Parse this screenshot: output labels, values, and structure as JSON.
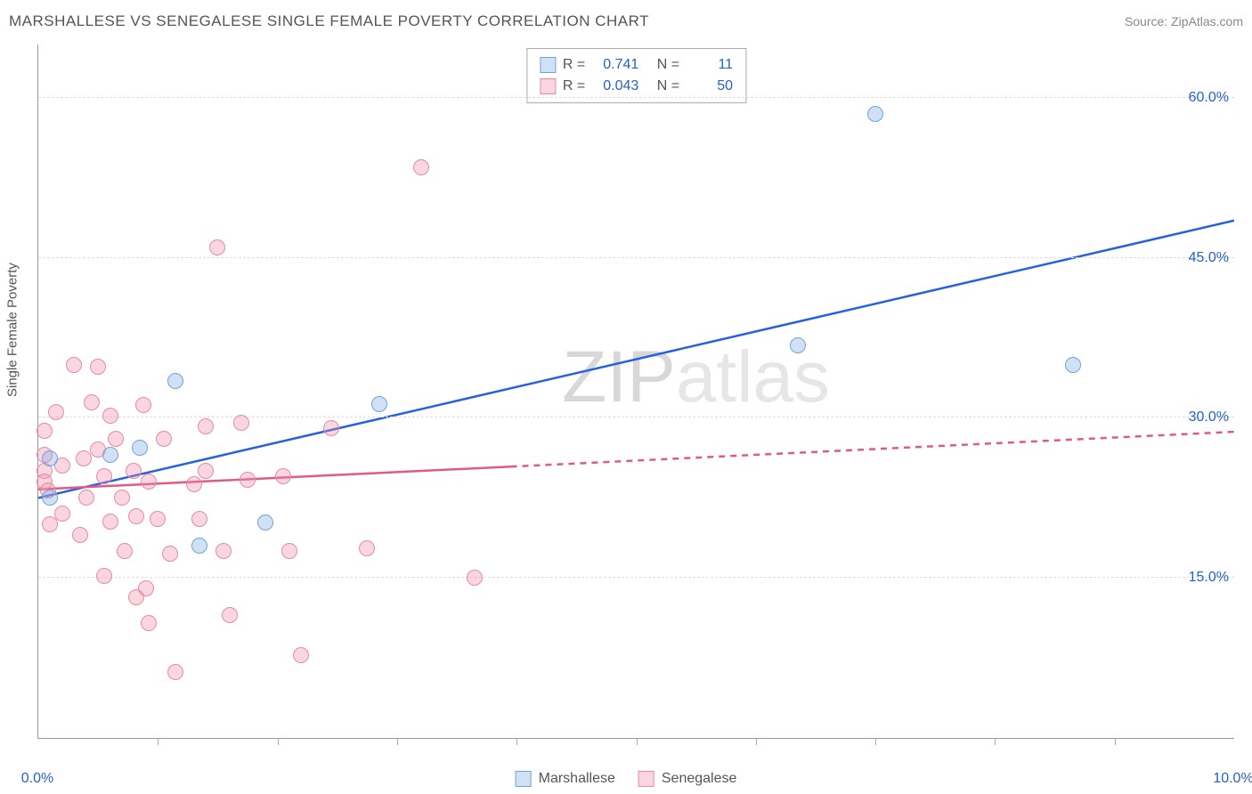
{
  "title": "MARSHALLESE VS SENEGALESE SINGLE FEMALE POVERTY CORRELATION CHART",
  "source": "Source: ZipAtlas.com",
  "watermark": {
    "pre": "ZIP",
    "post": "atlas"
  },
  "chart": {
    "type": "scatter",
    "y_axis_label": "Single Female Poverty",
    "xlim": [
      0,
      10
    ],
    "ylim": [
      0,
      65
    ],
    "x_ticks_major": [
      0,
      10
    ],
    "x_ticks_minor": [
      1,
      2,
      3,
      4,
      5,
      6,
      7,
      8,
      9
    ],
    "y_gridlines": [
      15,
      30,
      45,
      60
    ],
    "x_tick_labels": {
      "0": "0.0%",
      "10": "10.0%"
    },
    "y_tick_labels": {
      "15": "15.0%",
      "30": "30.0%",
      "45": "45.0%",
      "60": "60.0%"
    },
    "background_color": "#ffffff",
    "grid_color": "#dddddd",
    "axis_color": "#999999",
    "tick_label_color": "#2561c9",
    "label_fontsize": 15,
    "tick_fontsize": 16,
    "marker_radius": 9,
    "series": {
      "marshallese": {
        "label": "Marshallese",
        "color_fill": "rgba(120,170,230,0.35)",
        "color_stroke": "#6fa3db",
        "r_value": "0.741",
        "n_value": "11",
        "trend": {
          "x1": 0,
          "y1": 22.5,
          "x2": 10,
          "y2": 48.5,
          "solid_until_x": 10,
          "color": "#2561e0",
          "width": 2.5
        },
        "points": [
          [
            0.1,
            22.5
          ],
          [
            0.1,
            26.2
          ],
          [
            0.6,
            26.5
          ],
          [
            0.85,
            27.2
          ],
          [
            1.15,
            33.5
          ],
          [
            1.35,
            18.0
          ],
          [
            1.9,
            20.2
          ],
          [
            2.85,
            31.3
          ],
          [
            6.35,
            36.8
          ],
          [
            7.0,
            58.5
          ],
          [
            8.65,
            35.0
          ]
        ]
      },
      "senegalese": {
        "label": "Senegalese",
        "color_fill": "rgba(240,140,165,0.35)",
        "color_stroke": "#e88aa4",
        "r_value": "0.043",
        "n_value": "50",
        "trend": {
          "x1": 0,
          "y1": 23.3,
          "x2": 10,
          "y2": 28.7,
          "solid_until_x": 3.95,
          "color": "#e05a85",
          "width": 2.5
        },
        "points": [
          [
            0.05,
            26.5
          ],
          [
            0.05,
            25.0
          ],
          [
            0.05,
            24.0
          ],
          [
            0.05,
            28.8
          ],
          [
            0.08,
            23.2
          ],
          [
            0.1,
            20.0
          ],
          [
            0.15,
            30.5
          ],
          [
            0.2,
            21.0
          ],
          [
            0.2,
            25.5
          ],
          [
            0.3,
            35.0
          ],
          [
            0.35,
            19.0
          ],
          [
            0.38,
            26.2
          ],
          [
            0.4,
            22.5
          ],
          [
            0.45,
            31.5
          ],
          [
            0.5,
            27.0
          ],
          [
            0.5,
            34.8
          ],
          [
            0.55,
            15.2
          ],
          [
            0.55,
            24.5
          ],
          [
            0.6,
            30.2
          ],
          [
            0.6,
            20.3
          ],
          [
            0.65,
            28.0
          ],
          [
            0.7,
            22.5
          ],
          [
            0.72,
            17.5
          ],
          [
            0.8,
            25.0
          ],
          [
            0.82,
            13.2
          ],
          [
            0.82,
            20.8
          ],
          [
            0.88,
            31.2
          ],
          [
            0.9,
            14.0
          ],
          [
            0.92,
            10.8
          ],
          [
            0.92,
            24.0
          ],
          [
            1.0,
            20.5
          ],
          [
            1.05,
            28.0
          ],
          [
            1.1,
            17.3
          ],
          [
            1.15,
            6.2
          ],
          [
            1.3,
            23.8
          ],
          [
            1.35,
            20.5
          ],
          [
            1.4,
            29.2
          ],
          [
            1.4,
            25.0
          ],
          [
            1.5,
            46.0
          ],
          [
            1.55,
            17.5
          ],
          [
            1.6,
            11.5
          ],
          [
            1.7,
            29.5
          ],
          [
            1.75,
            24.2
          ],
          [
            2.05,
            24.5
          ],
          [
            2.1,
            17.5
          ],
          [
            2.2,
            7.8
          ],
          [
            2.45,
            29.0
          ],
          [
            2.75,
            17.8
          ],
          [
            3.2,
            53.5
          ],
          [
            3.65,
            15.0
          ]
        ]
      }
    }
  },
  "stats_legend": {
    "r_label": "R =",
    "n_label": "N ="
  }
}
